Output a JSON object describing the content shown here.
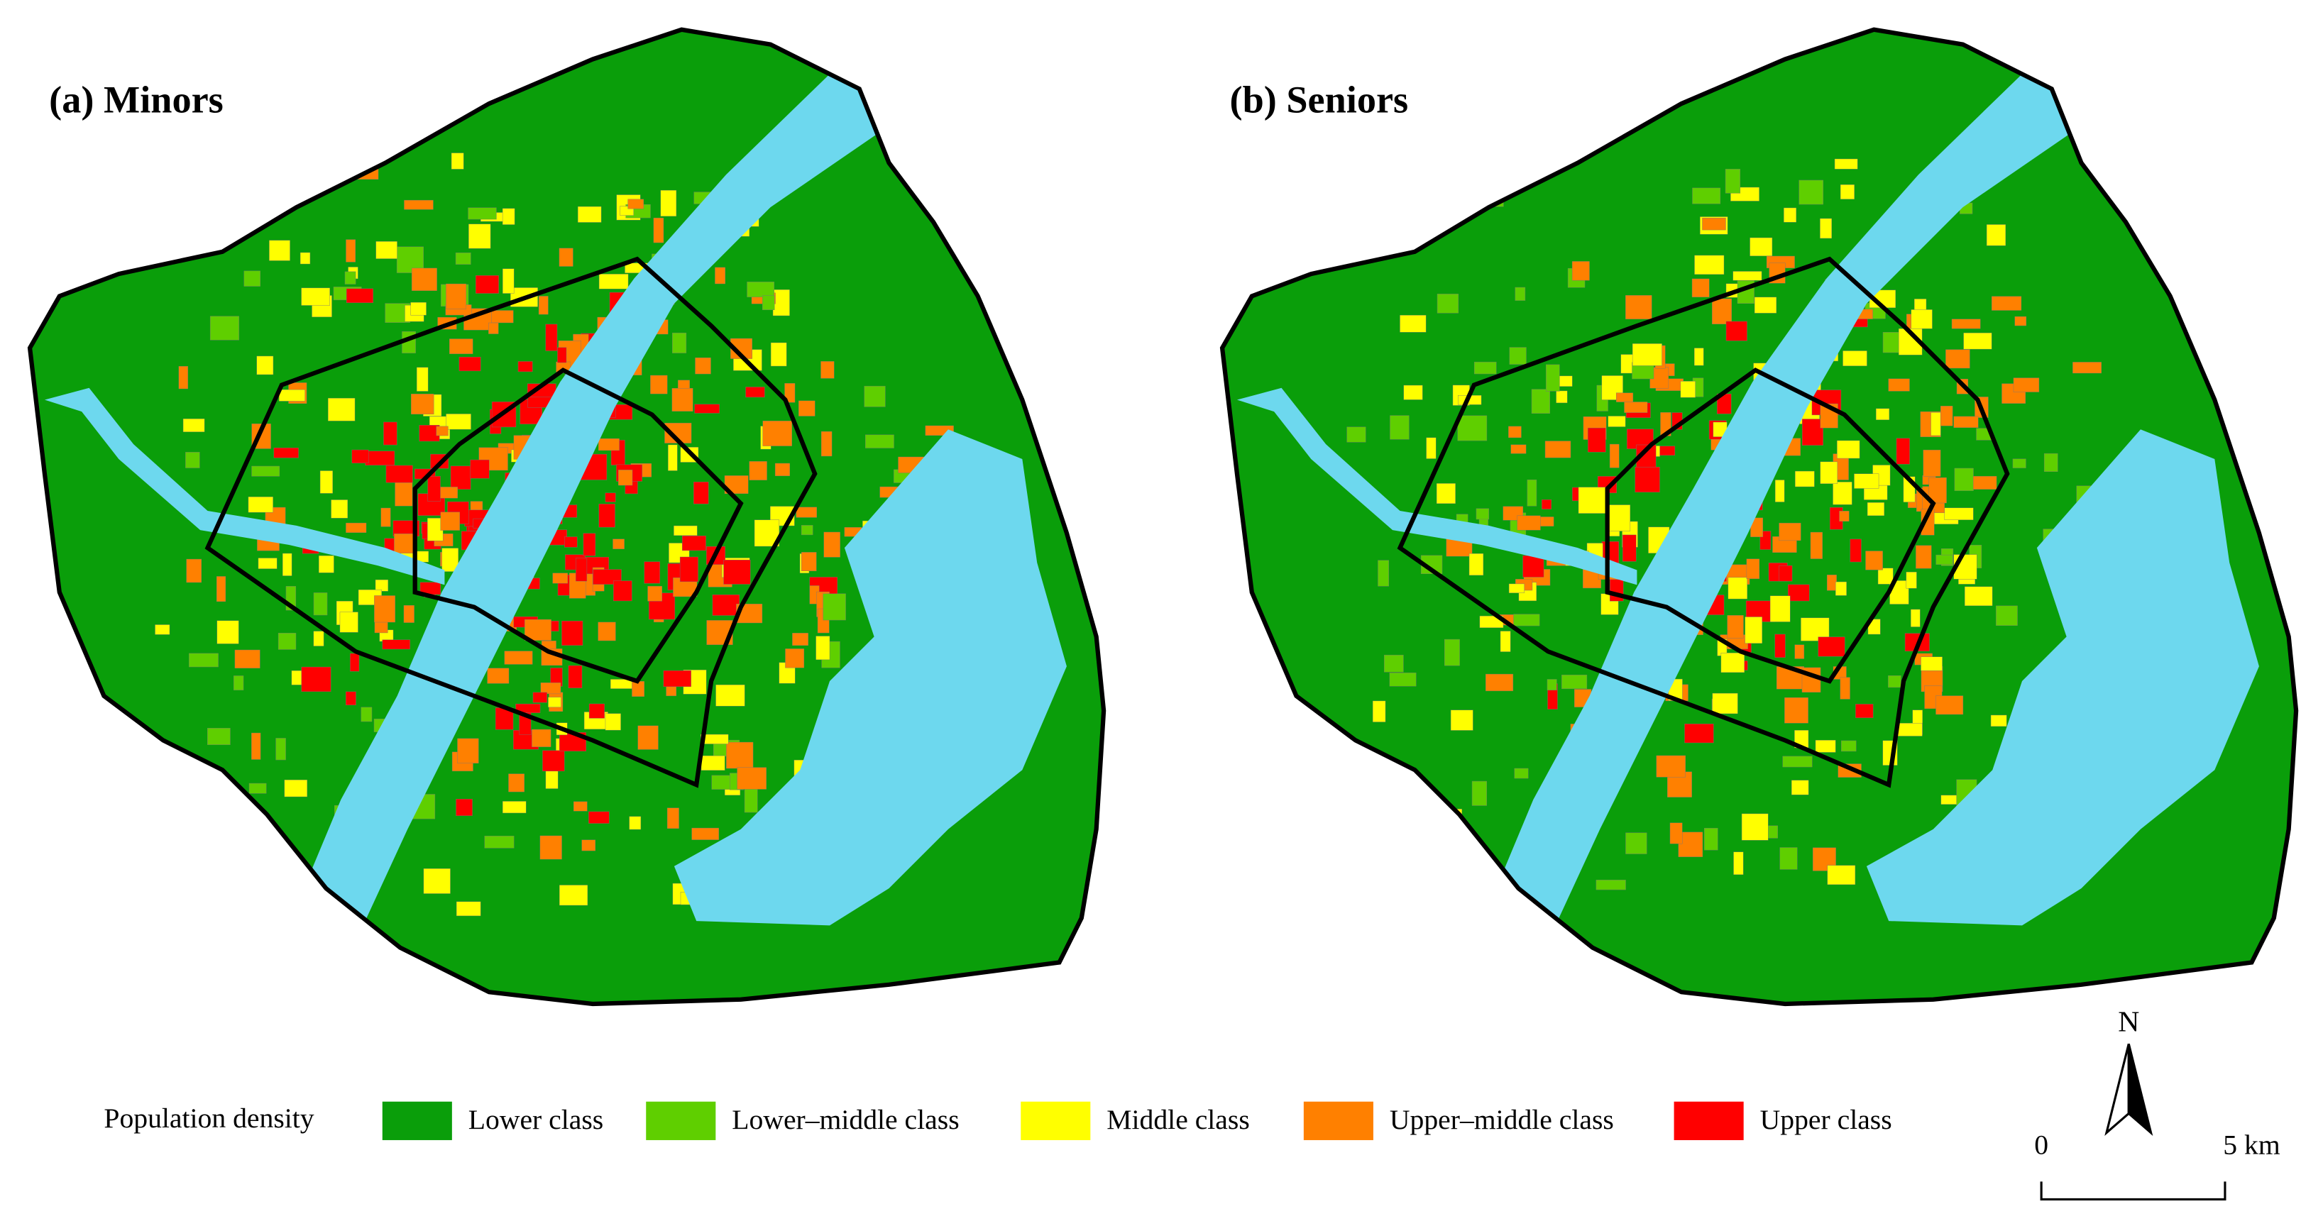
{
  "panels": [
    {
      "title": "(a) Minors"
    },
    {
      "title": "(b) Seniors"
    }
  ],
  "legend": {
    "title": "Population density",
    "items": [
      {
        "label": "Lower class",
        "color": "#0a9e0a"
      },
      {
        "label": "Lower–middle class",
        "color": "#5fcf00"
      },
      {
        "label": "Middle class",
        "color": "#ffff00"
      },
      {
        "label": "Upper–middle class",
        "color": "#ff8000"
      },
      {
        "label": "Upper class",
        "color": "#ff0000"
      }
    ]
  },
  "north_arrow": {
    "label": "N"
  },
  "scale_bar": {
    "labels": [
      "0",
      "5 km"
    ]
  }
}
